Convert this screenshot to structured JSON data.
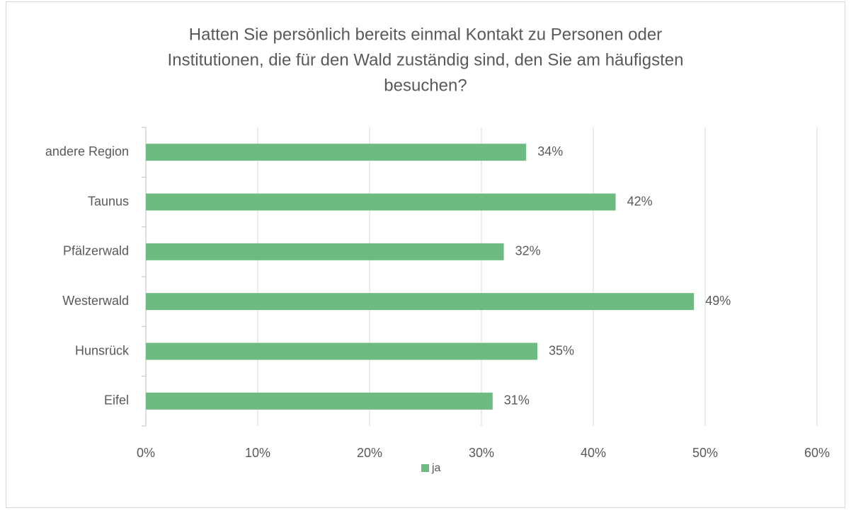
{
  "chart_data": {
    "type": "bar",
    "orientation": "horizontal",
    "title": [
      "Hatten Sie persönlich bereits einmal Kontakt zu Personen oder",
      "Institutionen, die für den Wald zuständig sind, den Sie am häufigsten",
      "besuchen?"
    ],
    "categories": [
      "andere Region",
      "Taunus",
      "Pfälzerwald",
      "Westerwald",
      "Hunsrück",
      "Eifel"
    ],
    "series": [
      {
        "name": "ja",
        "color": "#6dbb81",
        "values": [
          34,
          42,
          32,
          49,
          35,
          31
        ],
        "value_labels": [
          "34%",
          "42%",
          "32%",
          "49%",
          "35%",
          "31%"
        ]
      }
    ],
    "xlim": [
      0,
      60
    ],
    "xticks": [
      {
        "value": 0,
        "label": "0%"
      },
      {
        "value": 10,
        "label": "10%"
      },
      {
        "value": 20,
        "label": "20%"
      },
      {
        "value": 30,
        "label": "30%"
      },
      {
        "value": 40,
        "label": "40%"
      },
      {
        "value": 50,
        "label": "50%"
      },
      {
        "value": 60,
        "label": "60%"
      }
    ],
    "grid": true,
    "legend": "bottom"
  }
}
